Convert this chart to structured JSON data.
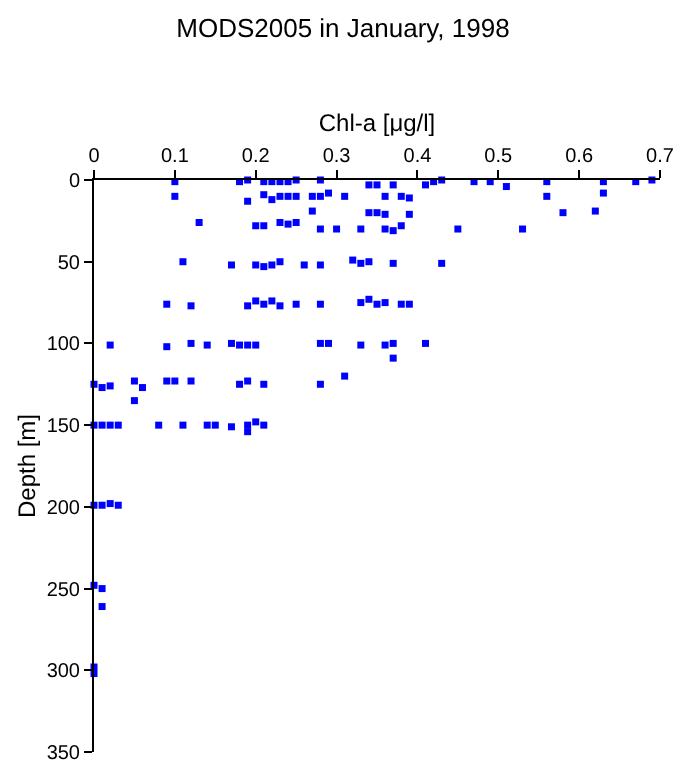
{
  "chart_data": {
    "type": "scatter",
    "title": "MODS2005 in January, 1998",
    "xlabel": "Chl-a [μg/l]",
    "ylabel": "Depth [m]",
    "xlim": [
      0,
      0.7
    ],
    "xticks": [
      0,
      0.1,
      0.2,
      0.3,
      0.4,
      0.5,
      0.6,
      0.7
    ],
    "ylim": [
      350,
      0
    ],
    "yticks": [
      0,
      50,
      100,
      150,
      200,
      250,
      300,
      350
    ],
    "marker": "square",
    "series": [
      {
        "color": "#0000ff",
        "x": [
          0.1,
          0.18,
          0.19,
          0.21,
          0.22,
          0.23,
          0.24,
          0.25,
          0.28,
          0.34,
          0.35,
          0.37,
          0.41,
          0.42,
          0.43,
          0.47,
          0.49,
          0.51,
          0.56,
          0.63,
          0.67,
          0.69,
          0.1,
          0.19,
          0.21,
          0.22,
          0.23,
          0.24,
          0.25,
          0.27,
          0.28,
          0.29,
          0.31,
          0.36,
          0.38,
          0.39,
          0.56,
          0.63,
          0.27,
          0.34,
          0.35,
          0.36,
          0.39,
          0.58,
          0.62,
          0.13,
          0.2,
          0.21,
          0.23,
          0.24,
          0.25,
          0.28,
          0.3,
          0.33,
          0.36,
          0.37,
          0.38,
          0.45,
          0.53,
          0.11,
          0.17,
          0.2,
          0.21,
          0.22,
          0.23,
          0.26,
          0.28,
          0.32,
          0.33,
          0.34,
          0.37,
          0.43,
          0.09,
          0.12,
          0.19,
          0.2,
          0.21,
          0.22,
          0.23,
          0.25,
          0.28,
          0.33,
          0.34,
          0.35,
          0.36,
          0.38,
          0.39,
          0.02,
          0.09,
          0.12,
          0.14,
          0.17,
          0.18,
          0.19,
          0.2,
          0.28,
          0.29,
          0.33,
          0.36,
          0.37,
          0.41,
          0.37,
          0.0,
          0.01,
          0.02,
          0.05,
          0.06,
          0.05,
          0.09,
          0.1,
          0.12,
          0.18,
          0.19,
          0.21,
          0.28,
          0.31,
          0.0,
          0.01,
          0.02,
          0.03,
          0.08,
          0.11,
          0.14,
          0.15,
          0.17,
          0.19,
          0.19,
          0.2,
          0.21,
          0.0,
          0.01,
          0.02,
          0.03,
          0.0,
          0.01,
          0.01,
          0.0,
          0.0
        ],
        "values": [
          1,
          1,
          0,
          1,
          1,
          1,
          1,
          0,
          0,
          3,
          3,
          3,
          3,
          1,
          0,
          1,
          1,
          4,
          1,
          1,
          1,
          0,
          10,
          13,
          9,
          12,
          10,
          10,
          10,
          10,
          10,
          8,
          10,
          10,
          10,
          11,
          10,
          8,
          19,
          20,
          20,
          21,
          21,
          20,
          19,
          26,
          28,
          28,
          26,
          27,
          26,
          30,
          30,
          30,
          30,
          31,
          28,
          30,
          30,
          50,
          52,
          52,
          53,
          52,
          50,
          52,
          52,
          49,
          51,
          50,
          51,
          51,
          76,
          77,
          77,
          74,
          76,
          74,
          77,
          76,
          76,
          75,
          73,
          76,
          75,
          76,
          76,
          101,
          102,
          100,
          101,
          100,
          101,
          101,
          101,
          100,
          100,
          101,
          101,
          100,
          100,
          109,
          125,
          127,
          126,
          123,
          127,
          135,
          123,
          123,
          123,
          125,
          123,
          125,
          125,
          120,
          150,
          150,
          150,
          150,
          150,
          150,
          150,
          150,
          151,
          150,
          154,
          148,
          150,
          199,
          199,
          198,
          199,
          248,
          250,
          261,
          298,
          302
        ]
      }
    ]
  }
}
